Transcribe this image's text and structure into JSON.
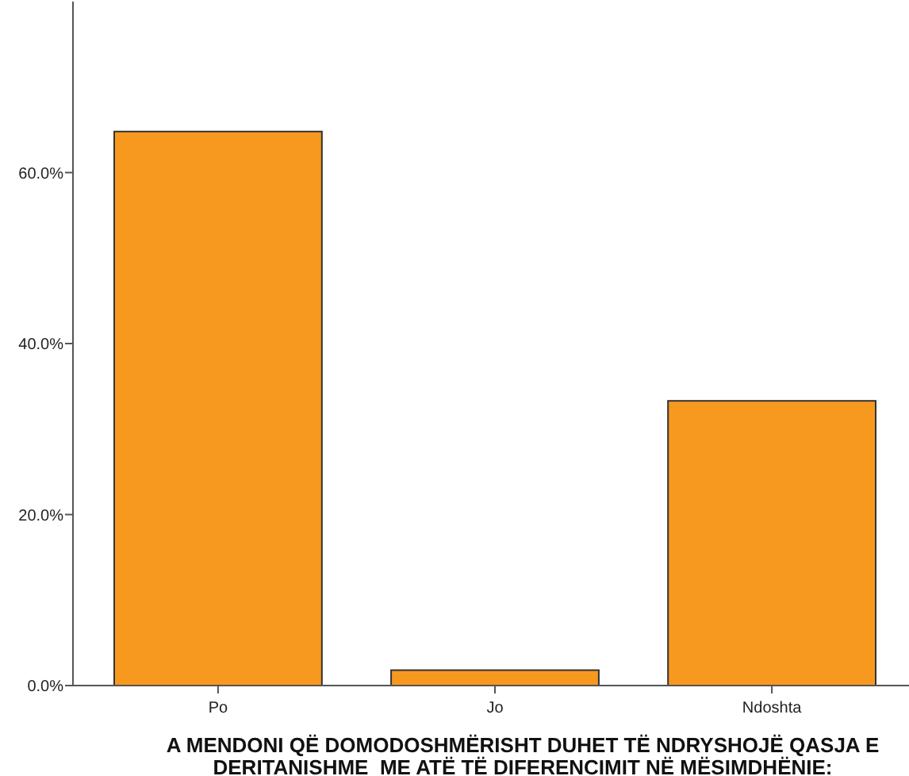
{
  "chart_data": {
    "type": "bar",
    "xlabel": "A MENDONI QË DOMODOSHMËRISHT DUHET TË NDRYSHOJË QASJA E\nDERITANISHME  ME ATË TË DIFERENCIMIT NË MËSIMDHËNIE:",
    "categories": [
      "Po",
      "Jo",
      "Ndoshta"
    ],
    "values": [
      64.8,
      1.8,
      33.3
    ],
    "color": "#f7991f",
    "ylim": [
      0,
      80
    ],
    "yticks": [
      {
        "value": 0,
        "label": "0.0%"
      },
      {
        "value": 20,
        "label": "20.0%"
      },
      {
        "value": 40,
        "label": "40.0%"
      },
      {
        "value": 60,
        "label": "60.0%"
      }
    ],
    "grid": false
  }
}
